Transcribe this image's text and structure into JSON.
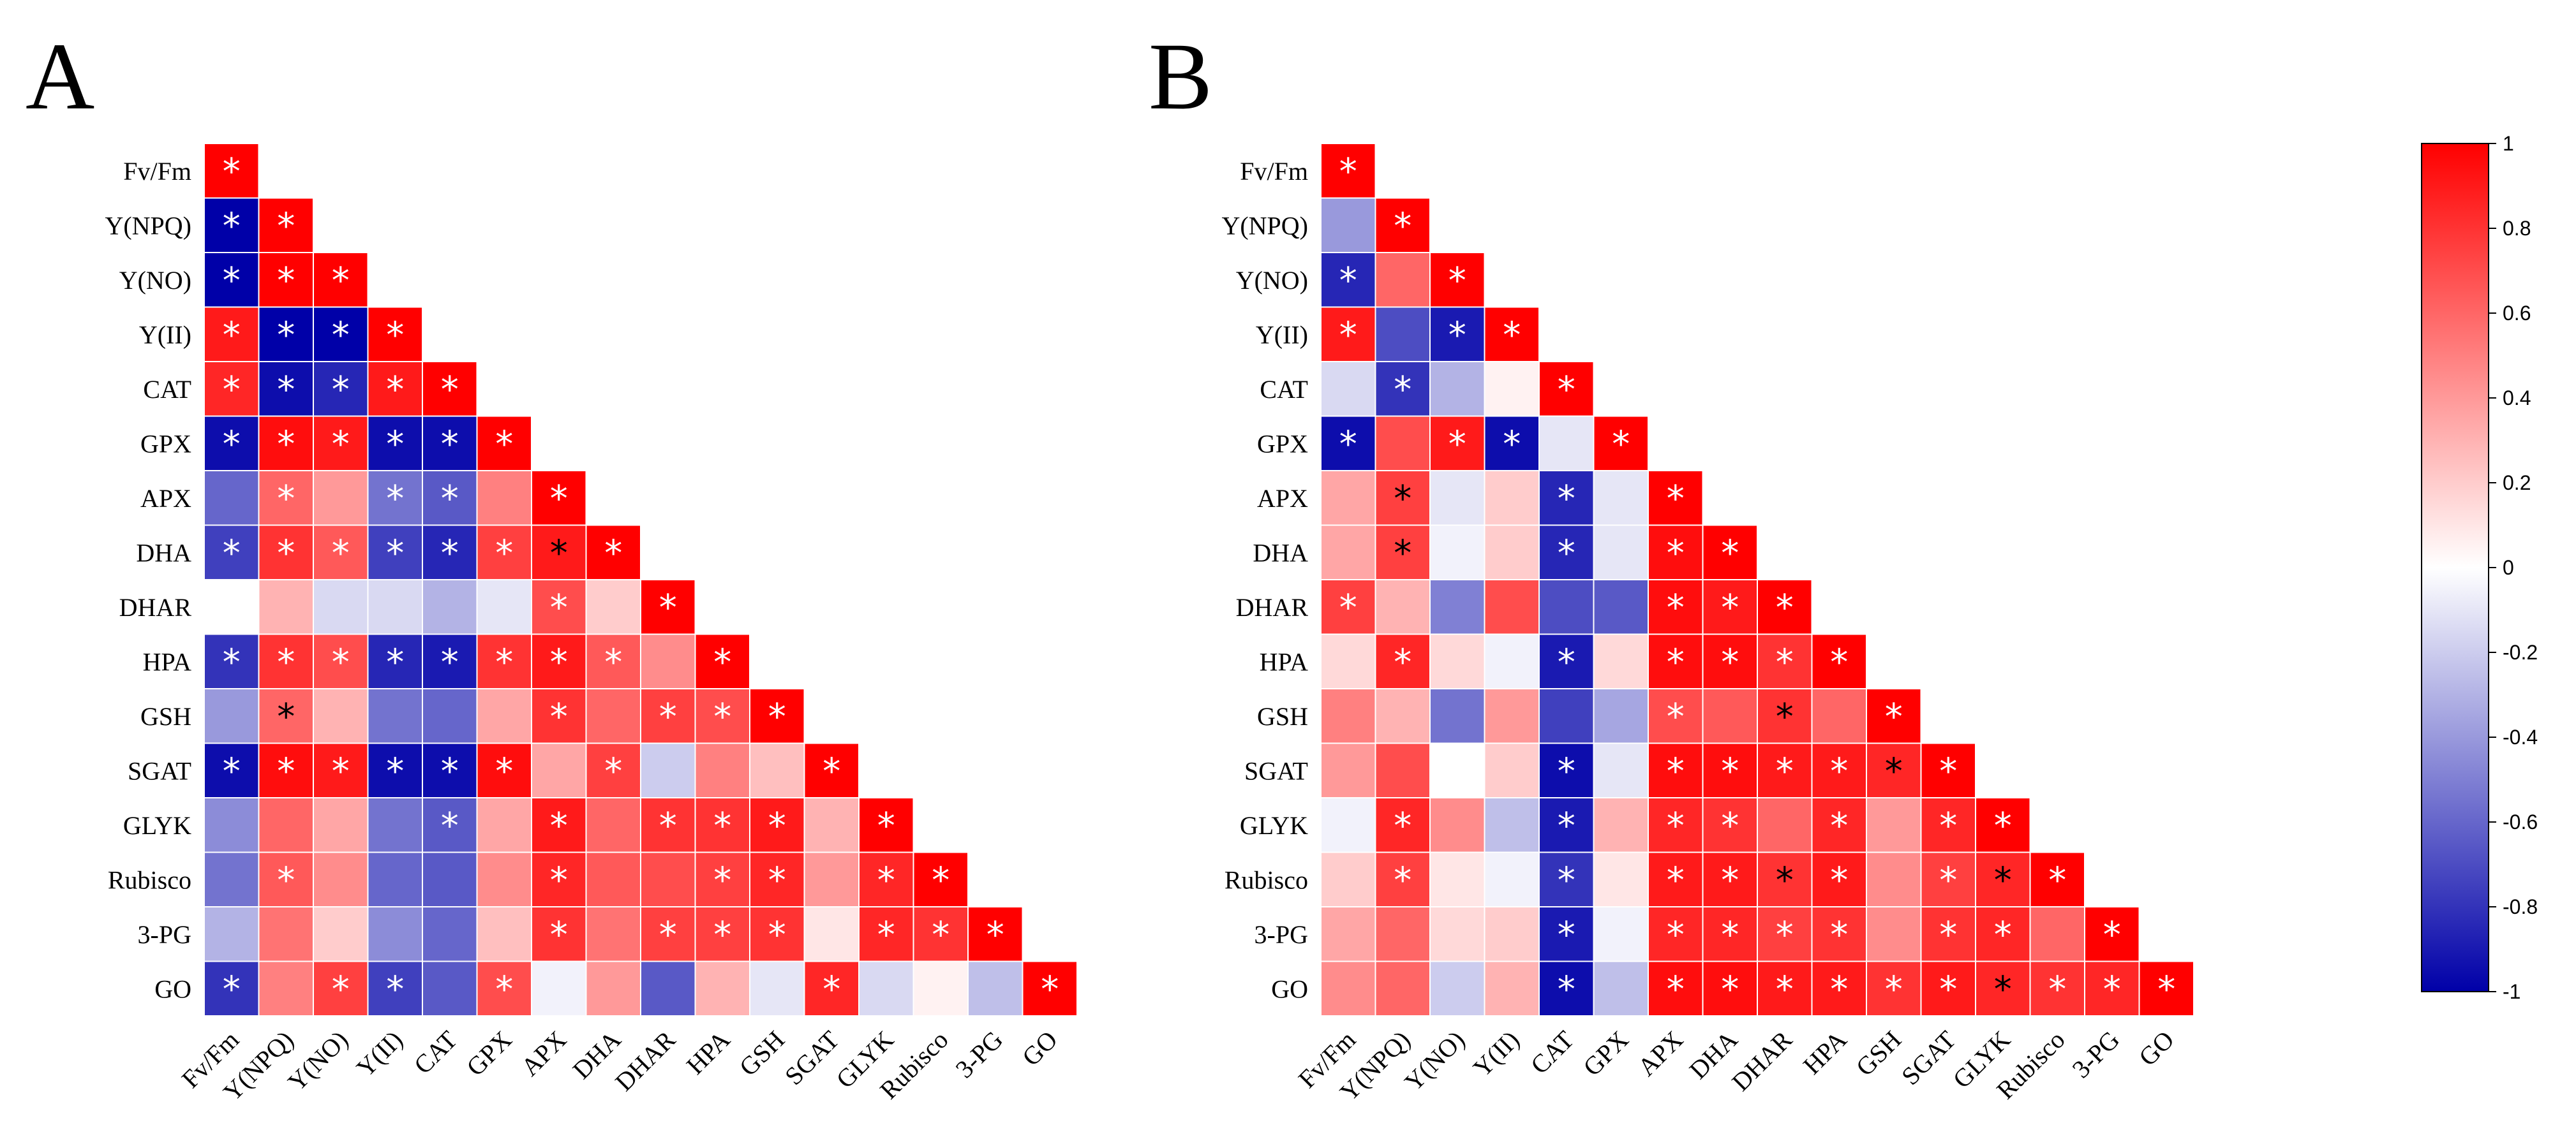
{
  "chart_data": [
    {
      "type": "heatmap",
      "panel_label": "A",
      "title": "",
      "labels": [
        "Fv/Fm",
        "Y(NPQ)",
        "Y(NO)",
        "Y(II)",
        "CAT",
        "GPX",
        "APX",
        "DHA",
        "DHAR",
        "HPA",
        "GSH",
        "SGAT",
        "GLYK",
        "Rubisco",
        "3-PG",
        "GO"
      ],
      "lower_triangle": true,
      "values": [
        [
          1
        ],
        [
          -1,
          1
        ],
        [
          -1,
          1,
          1
        ],
        [
          0.9,
          -1,
          -1,
          1
        ],
        [
          0.85,
          -0.95,
          -0.85,
          0.9,
          1
        ],
        [
          -0.95,
          0.95,
          0.9,
          -0.95,
          -0.95,
          1
        ],
        [
          -0.6,
          0.6,
          0.4,
          -0.55,
          -0.65,
          0.5,
          1
        ],
        [
          -0.75,
          0.8,
          0.65,
          -0.75,
          -0.85,
          0.75,
          0.9,
          1
        ],
        [
          0,
          0.3,
          -0.15,
          -0.15,
          -0.3,
          -0.1,
          0.7,
          0.2,
          1
        ],
        [
          -0.8,
          0.8,
          0.7,
          -0.85,
          -0.9,
          0.8,
          0.9,
          0.65,
          0.45,
          1
        ],
        [
          -0.4,
          0.6,
          0.3,
          -0.55,
          -0.6,
          0.35,
          0.8,
          0.6,
          0.75,
          0.7,
          1
        ],
        [
          -0.95,
          0.95,
          0.9,
          -0.95,
          -0.95,
          0.95,
          0.35,
          0.75,
          -0.2,
          0.5,
          0.25,
          1
        ],
        [
          -0.45,
          0.6,
          0.35,
          -0.55,
          -0.65,
          0.35,
          0.9,
          0.6,
          0.8,
          0.8,
          0.9,
          0.3,
          1
        ],
        [
          -0.55,
          0.65,
          0.45,
          -0.6,
          -0.65,
          0.45,
          0.85,
          0.65,
          0.7,
          0.75,
          0.85,
          0.4,
          0.85,
          1
        ],
        [
          -0.3,
          0.55,
          0.2,
          -0.45,
          -0.6,
          0.25,
          0.8,
          0.55,
          0.75,
          0.75,
          0.8,
          0.1,
          0.85,
          0.8,
          1
        ],
        [
          -0.8,
          0.5,
          0.75,
          -0.75,
          -0.65,
          0.7,
          -0.05,
          0.4,
          -0.65,
          0.3,
          -0.1,
          0.85,
          -0.15,
          0.05,
          -0.25,
          1
        ]
      ],
      "significance": [
        [
          "w"
        ],
        [
          "w",
          "w"
        ],
        [
          "w",
          "w",
          "w"
        ],
        [
          "w",
          "w",
          "w",
          "w"
        ],
        [
          "w",
          "w",
          "w",
          "w",
          "w"
        ],
        [
          "w",
          "w",
          "w",
          "w",
          "w",
          "w"
        ],
        [
          "",
          "w",
          "",
          "w",
          "w",
          "",
          "w"
        ],
        [
          "w",
          "w",
          "w",
          "w",
          "w",
          "w",
          "k",
          "w"
        ],
        [
          "",
          "",
          "",
          "",
          "",
          "",
          "w",
          "",
          "w"
        ],
        [
          "w",
          "w",
          "w",
          "w",
          "w",
          "w",
          "w",
          "w",
          "",
          "w"
        ],
        [
          "",
          "k",
          "",
          "",
          "",
          "",
          "w",
          "",
          "w",
          "w",
          "w"
        ],
        [
          "w",
          "w",
          "w",
          "w",
          "w",
          "w",
          "",
          "w",
          "",
          "",
          "",
          "w"
        ],
        [
          "",
          "",
          "",
          "",
          "w",
          "",
          "w",
          "",
          "w",
          "w",
          "w",
          "",
          "w"
        ],
        [
          "",
          "w",
          "",
          "",
          "",
          "",
          "w",
          "",
          "",
          "w",
          "w",
          "",
          "w",
          "w"
        ],
        [
          "",
          "",
          "",
          "",
          "",
          "",
          "w",
          "",
          "w",
          "w",
          "w",
          "",
          "w",
          "w",
          "w"
        ],
        [
          "w",
          "",
          "w",
          "w",
          "",
          "w",
          "",
          "",
          "",
          "",
          "",
          "w",
          "",
          "",
          "",
          "w"
        ]
      ]
    },
    {
      "type": "heatmap",
      "panel_label": "B",
      "title": "",
      "labels": [
        "Fv/Fm",
        "Y(NPQ)",
        "Y(NO)",
        "Y(II)",
        "CAT",
        "GPX",
        "APX",
        "DHA",
        "DHAR",
        "HPA",
        "GSH",
        "SGAT",
        "GLYK",
        "Rubisco",
        "3-PG",
        "GO"
      ],
      "lower_triangle": true,
      "values": [
        [
          1
        ],
        [
          -0.4,
          1
        ],
        [
          -0.85,
          0.6,
          1
        ],
        [
          0.9,
          -0.7,
          -0.9,
          1
        ],
        [
          -0.15,
          -0.8,
          -0.3,
          0.05,
          1
        ],
        [
          -0.95,
          0.7,
          0.9,
          -0.95,
          -0.1,
          1
        ],
        [
          0.35,
          0.75,
          -0.1,
          0.2,
          -0.85,
          -0.1,
          1
        ],
        [
          0.35,
          0.75,
          -0.05,
          0.2,
          -0.85,
          -0.1,
          0.95,
          1
        ],
        [
          0.75,
          0.3,
          -0.5,
          0.7,
          -0.7,
          -0.65,
          0.95,
          0.9,
          1
        ],
        [
          0.15,
          0.85,
          0.15,
          -0.05,
          -0.9,
          0.15,
          0.95,
          0.95,
          0.8,
          1
        ],
        [
          0.5,
          0.3,
          -0.55,
          0.4,
          -0.75,
          -0.35,
          0.7,
          0.65,
          0.8,
          0.6,
          1
        ],
        [
          0.4,
          0.7,
          0,
          0.2,
          -0.95,
          -0.1,
          0.95,
          0.95,
          0.9,
          0.9,
          0.85,
          1
        ],
        [
          -0.05,
          0.85,
          0.45,
          -0.25,
          -0.9,
          0.3,
          0.85,
          0.8,
          0.6,
          0.85,
          0.4,
          0.85,
          1
        ],
        [
          0.2,
          0.75,
          0.1,
          -0.05,
          -0.8,
          0.1,
          0.9,
          0.9,
          0.8,
          0.9,
          0.45,
          0.75,
          0.85,
          1
        ],
        [
          0.35,
          0.6,
          0.15,
          0.2,
          -0.9,
          -0.05,
          0.85,
          0.85,
          0.75,
          0.8,
          0.45,
          0.8,
          0.85,
          0.6,
          1
        ],
        [
          0.45,
          0.6,
          -0.2,
          0.3,
          -0.95,
          -0.25,
          0.95,
          0.95,
          0.9,
          0.9,
          0.8,
          0.9,
          0.85,
          0.8,
          0.85,
          1
        ]
      ],
      "significance": [
        [
          "w"
        ],
        [
          "",
          "w"
        ],
        [
          "w",
          "",
          "w"
        ],
        [
          "w",
          "",
          "w",
          "w"
        ],
        [
          "",
          "w",
          "",
          "",
          "w"
        ],
        [
          "w",
          "",
          "w",
          "w",
          "",
          "w"
        ],
        [
          "",
          "k",
          "",
          "",
          "w",
          "",
          "w"
        ],
        [
          "",
          "k",
          "",
          "",
          "w",
          "",
          "w",
          "w"
        ],
        [
          "w",
          "",
          "",
          "",
          "",
          "",
          "w",
          "w",
          "w"
        ],
        [
          "",
          "w",
          "",
          "",
          "w",
          "",
          "w",
          "w",
          "w",
          "w"
        ],
        [
          "",
          "",
          "",
          "",
          "",
          "",
          "w",
          "",
          "k",
          "",
          "w"
        ],
        [
          "",
          "",
          "",
          "",
          "w",
          "",
          "w",
          "w",
          "w",
          "w",
          "k",
          "w"
        ],
        [
          "",
          "w",
          "",
          "",
          "w",
          "",
          "w",
          "w",
          "",
          "w",
          "",
          "w",
          "w"
        ],
        [
          "",
          "w",
          "",
          "",
          "w",
          "",
          "w",
          "w",
          "k",
          "w",
          "",
          "w",
          "k",
          "w"
        ],
        [
          "",
          "",
          "",
          "",
          "w",
          "",
          "w",
          "w",
          "w",
          "w",
          "",
          "w",
          "w",
          "",
          "w"
        ],
        [
          "",
          "",
          "",
          "",
          "w",
          "",
          "w",
          "w",
          "w",
          "w",
          "w",
          "w",
          "k",
          "w",
          "w",
          "w"
        ]
      ]
    }
  ],
  "colorbar": {
    "range": [
      -1,
      1
    ],
    "ticks": [
      "1",
      "0.8",
      "0.6",
      "0.4",
      "0.2",
      "0",
      "-0.2",
      "-0.4",
      "-0.6",
      "-0.8",
      "-1"
    ],
    "tick_values": [
      1,
      0.8,
      0.6,
      0.4,
      0.2,
      0,
      -0.2,
      -0.4,
      -0.6,
      -0.8,
      -1
    ],
    "colors": {
      "negative": "#0000a8",
      "neutral": "#ffffff",
      "positive": "#ff0000"
    }
  },
  "significance_marker": "*",
  "marker_colors": {
    "w": "#ffffff",
    "k": "#000000"
  }
}
